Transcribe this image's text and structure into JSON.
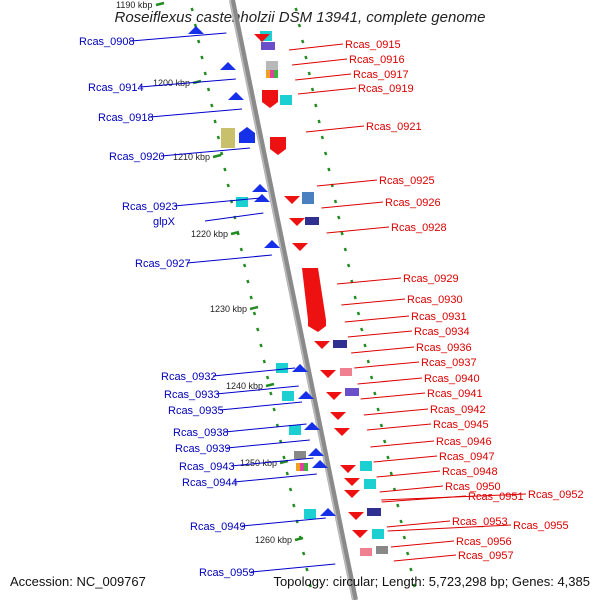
{
  "title": "Roseiflexus castenholzii DSM 13941, complete genome",
  "footer": {
    "accession": "Accession: NC_009767",
    "summary": "Topology: circular; Length: 5,723,298 bp; Genes: 4,385"
  },
  "scale_labels": [
    "1190 kbp",
    "1200 kbp",
    "1210 kbp",
    "1220 kbp",
    "1230 kbp",
    "1240 kbp",
    "1250 kbp",
    "1260 kbp"
  ],
  "left_genes": [
    "Rcas_0908",
    "Rcas_0914",
    "Rcas_0918",
    "Rcas_0920",
    "Rcas_0923",
    "glpX",
    "Rcas_0927",
    "Rcas_0932",
    "Rcas_0933",
    "Rcas_0935",
    "Rcas_0938",
    "Rcas_0939",
    "Rcas_0943",
    "Rcas_0944",
    "Rcas_0949",
    "Rcas_0959"
  ],
  "right_genes": [
    "Rcas_0915",
    "Rcas_0916",
    "Rcas_0917",
    "Rcas_0919",
    "Rcas_0921",
    "Rcas_0925",
    "Rcas_0926",
    "Rcas_0928",
    "Rcas_0929",
    "Rcas_0930",
    "Rcas_0931",
    "Rcas_0934",
    "Rcas_0936",
    "Rcas_0937",
    "Rcas_0940",
    "Rcas_0941",
    "Rcas_0942",
    "Rcas_0945",
    "Rcas_0946",
    "Rcas_0947",
    "Rcas_0948",
    "Rcas_0950",
    "Rcas_0951",
    "Rcas_0952",
    "Rcas_0953",
    "Rcas_0955",
    "Rcas_0956",
    "Rcas_0957"
  ],
  "colors": {
    "forward_strand": "#ee0000",
    "reverse_strand": "#0000ee",
    "backbone": "#888888",
    "tick": "#228b22"
  }
}
